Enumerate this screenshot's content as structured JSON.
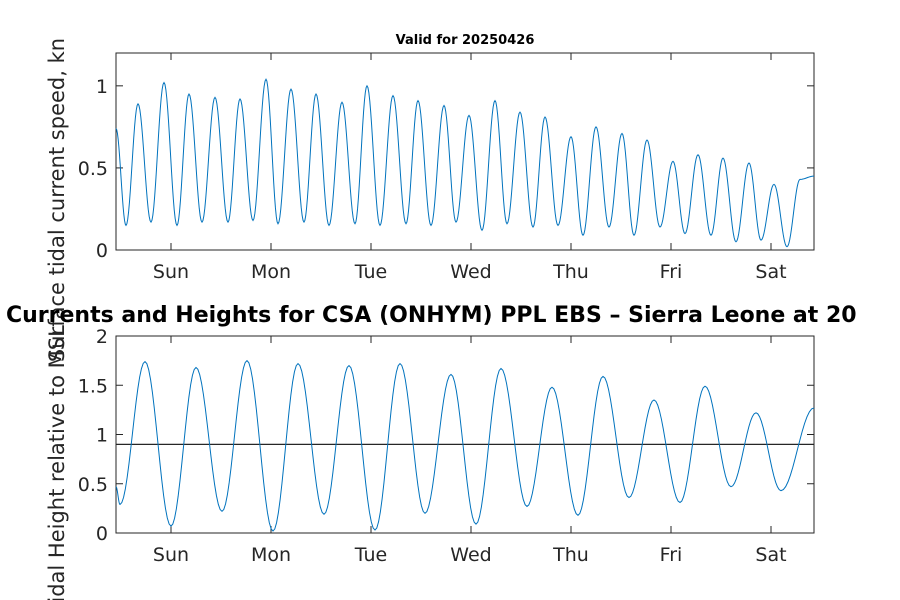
{
  "figure": {
    "small_title": "Valid for 20250426",
    "main_title": "Currents and Heights for CSA (ONHYM) PPL EBS  – Sierra Leone at 20"
  },
  "chart_data": [
    {
      "type": "line",
      "title": "Valid for 20250426",
      "ylabel": "Surface tidal current speed, kn",
      "xlabel": "",
      "x_ticks": [
        "Sun",
        "Mon",
        "Tue",
        "Wed",
        "Thu",
        "Fri",
        "Sat"
      ],
      "xlim_days": [
        -0.55,
        6.43
      ],
      "ylim": [
        0,
        1.2
      ],
      "y_ticks": [
        0,
        0.5,
        1
      ],
      "y_tick_labels": [
        "0",
        "0.5",
        "1"
      ],
      "grid": false,
      "color": "#0072BD",
      "series": [
        {
          "peak_times_days": [
            -0.33,
            -0.07,
            0.18,
            0.44,
            0.69,
            0.95,
            1.2,
            1.45,
            1.71,
            1.96,
            2.22,
            2.47,
            2.73,
            2.98,
            3.24,
            3.49,
            3.74,
            4.0,
            4.25,
            4.51,
            4.76,
            5.02,
            5.27,
            5.52,
            5.78,
            6.03,
            6.29
          ],
          "peak_values": [
            0.89,
            1.02,
            0.95,
            0.93,
            0.92,
            1.04,
            0.98,
            0.95,
            0.9,
            1.0,
            0.94,
            0.91,
            0.88,
            0.82,
            0.91,
            0.84,
            0.81,
            0.69,
            0.75,
            0.71,
            0.67,
            0.54,
            0.58,
            0.56,
            0.53,
            0.4,
            0.43
          ],
          "trough_times_days": [
            -0.45,
            -0.2,
            0.06,
            0.31,
            0.57,
            0.82,
            1.07,
            1.33,
            1.58,
            1.84,
            2.09,
            2.35,
            2.6,
            2.85,
            3.11,
            3.36,
            3.62,
            3.87,
            4.12,
            4.38,
            4.63,
            4.89,
            5.14,
            5.4,
            5.65,
            5.9,
            6.16
          ],
          "trough_values": [
            0.15,
            0.17,
            0.15,
            0.17,
            0.17,
            0.18,
            0.16,
            0.17,
            0.15,
            0.16,
            0.15,
            0.16,
            0.15,
            0.17,
            0.12,
            0.16,
            0.14,
            0.15,
            0.09,
            0.14,
            0.09,
            0.14,
            0.1,
            0.09,
            0.05,
            0.06,
            0.02
          ],
          "start_value": 0.74,
          "end_value": 0.45
        }
      ]
    },
    {
      "type": "line",
      "ylabel": "Tidal Height relative to MSL",
      "xlabel": "",
      "x_ticks": [
        "Sun",
        "Mon",
        "Tue",
        "Wed",
        "Thu",
        "Fri",
        "Sat"
      ],
      "xlim_days": [
        -0.55,
        6.43
      ],
      "ylim": [
        0,
        2
      ],
      "y_ticks": [
        0,
        0.5,
        1,
        1.5,
        2
      ],
      "y_tick_labels": [
        "0",
        "0.5",
        "1",
        "1.5",
        "2"
      ],
      "grid": false,
      "series": [
        {
          "color": "#0072BD",
          "high_times_days": [
            -0.26,
            0.25,
            0.76,
            1.27,
            1.78,
            2.29,
            2.8,
            3.3,
            3.81,
            4.32,
            4.83,
            5.34,
            5.85
          ],
          "high_values": [
            1.74,
            1.68,
            1.75,
            1.72,
            1.7,
            1.72,
            1.61,
            1.67,
            1.48,
            1.59,
            1.35,
            1.49,
            1.22
          ],
          "low_times_days": [
            -0.51,
            0.0,
            0.51,
            1.02,
            1.53,
            2.04,
            2.54,
            3.05,
            3.56,
            4.07,
            4.58,
            5.09,
            5.6,
            6.1
          ],
          "low_values": [
            0.29,
            0.07,
            0.22,
            0.02,
            0.19,
            0.03,
            0.2,
            0.09,
            0.27,
            0.18,
            0.36,
            0.31,
            0.47,
            0.43
          ],
          "end_value": 1.27
        },
        {
          "color": "#000000",
          "constant_value": 0.9
        }
      ]
    }
  ]
}
